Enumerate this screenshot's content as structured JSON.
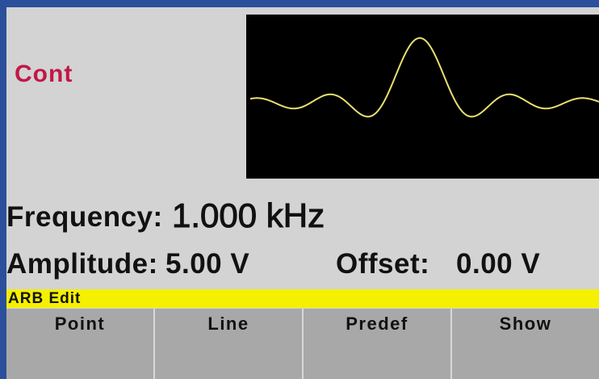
{
  "mode": "Cont",
  "frequency": {
    "label": "Frequency:",
    "value": "1.000 kHz"
  },
  "amplitude": {
    "label": "Amplitude:",
    "value": "5.00 V"
  },
  "offset": {
    "label": "Offset:",
    "value": "0.00 V"
  },
  "menu": {
    "title": "ARB Edit",
    "softkeys": [
      "Point",
      "Line",
      "Predef",
      "Show"
    ]
  }
}
